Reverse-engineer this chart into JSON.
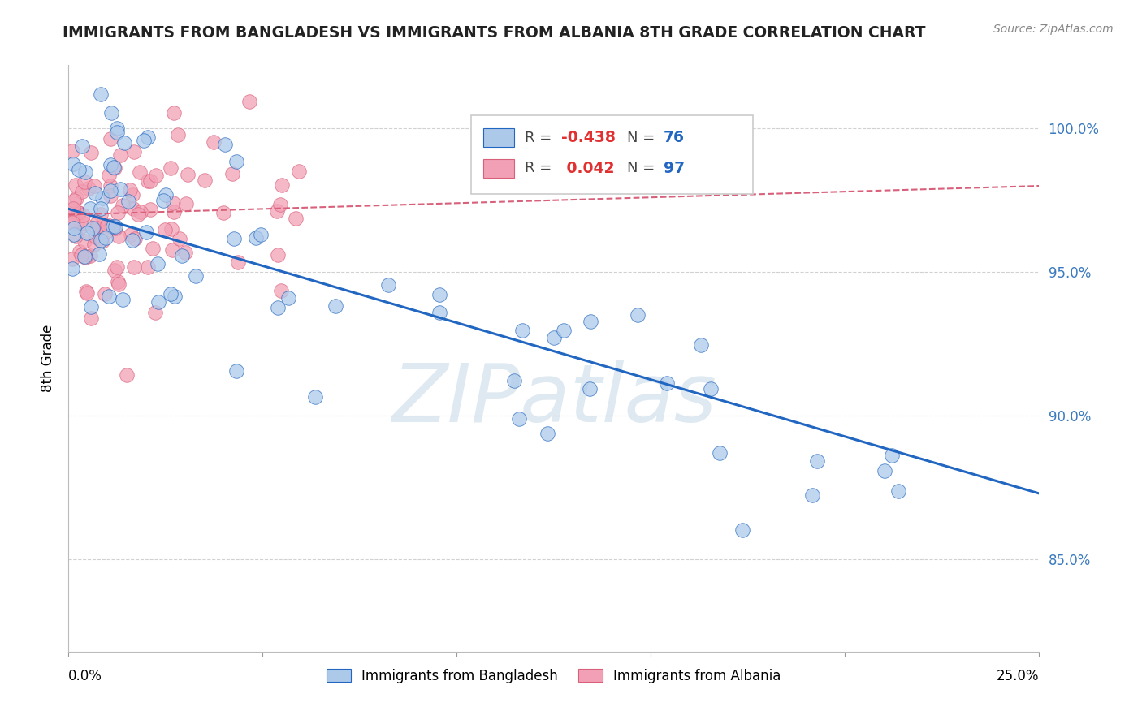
{
  "title": "IMMIGRANTS FROM BANGLADESH VS IMMIGRANTS FROM ALBANIA 8TH GRADE CORRELATION CHART",
  "source": "Source: ZipAtlas.com",
  "ylabel": "8th Grade",
  "xlim": [
    0.0,
    0.25
  ],
  "ylim": [
    0.818,
    1.022
  ],
  "bangladesh_R": -0.438,
  "bangladesh_N": 76,
  "albania_R": 0.042,
  "albania_N": 97,
  "bangladesh_color": "#adc9ea",
  "albania_color": "#f2a0b5",
  "bangladesh_line_color": "#2166c0",
  "albania_line_color": "#d9607a",
  "watermark": "ZIPatlas",
  "ytick_vals": [
    0.85,
    0.9,
    0.95,
    1.0
  ],
  "ytick_labels": [
    "85.0%",
    "90.0%",
    "95.0%",
    "100.0%"
  ],
  "legend_r1": "R = -0.438   N = 76",
  "legend_r2": "R =  0.042   N = 97",
  "legend_label1": "Immigrants from Bangladesh",
  "legend_label2": "Immigrants from Albania",
  "bang_line_x0": 0.0,
  "bang_line_y0": 0.972,
  "bang_line_x1": 0.25,
  "bang_line_y1": 0.873,
  "alba_line_x0": 0.0,
  "alba_line_y0": 0.97,
  "alba_line_x1": 0.25,
  "alba_line_y1": 0.98
}
